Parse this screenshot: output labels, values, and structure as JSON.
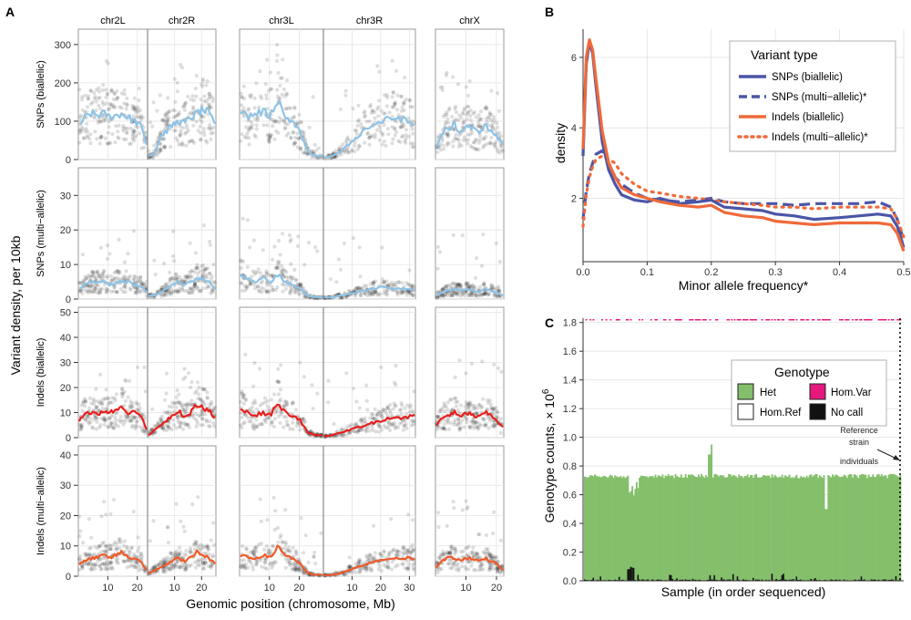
{
  "panel_a": {
    "letter": "A",
    "chromosomes": [
      "chr2L",
      "chr2R",
      "chr3L",
      "chr3R",
      "chrX"
    ],
    "ylabel": "Variant density, per 10kb",
    "xlabel": "Genomic position (chromosome, Mb)",
    "x_ticks": [
      {
        "chr": "chr2L",
        "values": [
          10,
          20
        ]
      },
      {
        "chr": "chr2R",
        "values": [
          10,
          20
        ]
      },
      {
        "chr": "chr3L",
        "values": [
          10,
          20
        ]
      },
      {
        "chr": "chr3R",
        "values": [
          10,
          20,
          30
        ]
      },
      {
        "chr": "chrX",
        "values": [
          10,
          20
        ]
      }
    ],
    "rows": [
      {
        "label": "SNPs (biallelic)",
        "ymax": 340,
        "ticks": [
          0,
          100,
          200,
          300
        ],
        "line_color": "#8ec3e6"
      },
      {
        "label": "SNPs (multi−allelic)",
        "ymax": 38,
        "ticks": [
          0,
          10,
          20,
          30
        ],
        "line_color": "#8ec3e6"
      },
      {
        "label": "Indels (biallelic)",
        "ymax": 52,
        "ticks": [
          0,
          10,
          20,
          30,
          40,
          50
        ],
        "line_color": "#e8201c"
      },
      {
        "label": "Indels (multi−allelic)",
        "ymax": 43,
        "ticks": [
          0,
          10,
          20,
          30,
          40
        ],
        "line_color": "#f05a28"
      }
    ]
  },
  "panel_b": {
    "letter": "B",
    "xlabel": "Minor allele frequency*",
    "ylabel": "density",
    "legend_title": "Variant type",
    "series_labels": [
      "SNPs (biallelic)",
      "SNPs (multi−allelic)*",
      "Indels (biallelic)",
      "Indels (multi−allelic)*"
    ]
  },
  "panel_c": {
    "letter": "C",
    "xlabel": "Sample (in order sequenced)",
    "ylabel_main": "Genotype counts, × 10",
    "ylabel_sup": "6",
    "legend_title": "Genotype",
    "legend_labels": [
      "Het",
      "Hom.Var",
      "Hom.Ref",
      "No call"
    ],
    "annotation": [
      "Reference",
      "strain",
      "individuals"
    ]
  },
  "chart_data": [
    {
      "type": "scatter",
      "panel": "A",
      "xlabel": "Genomic position (chromosome, Mb)",
      "ylabel": "Variant density, per 10kb",
      "chromosome_length_mb": {
        "chr2L": 23.5,
        "chr2R": 25.3,
        "chr3L": 28.1,
        "chr3R": 32.1,
        "chrX": 22.4
      },
      "series": [
        {
          "name": "SNPs (biallelic)",
          "ylim": [
            0,
            340
          ],
          "trend": {
            "chr2L": [
              90,
              110,
              120,
              115,
              120,
              110,
              115,
              120,
              110,
              100,
              90,
              40
            ],
            "chr2R": [
              10,
              15,
              60,
              75,
              90,
              100,
              95,
              110,
              120,
              130,
              120,
              90
            ],
            "chr3L": [
              130,
              110,
              120,
              125,
              115,
              160,
              110,
              100,
              70,
              20,
              10,
              8
            ],
            "chr3R": [
              5,
              10,
              20,
              40,
              60,
              80,
              90,
              100,
              105,
              110,
              100,
              90
            ],
            "chrX": [
              30,
              70,
              80,
              90,
              70,
              90,
              80,
              70,
              90,
              75,
              60,
              40
            ]
          }
        },
        {
          "name": "SNPs (multi−allelic)",
          "ylim": [
            0,
            38
          ],
          "trend": {
            "chr2L": [
              3,
              4,
              5,
              5,
              5,
              4,
              5,
              5,
              5,
              4,
              4,
              2
            ],
            "chr2R": [
              1,
              1,
              2,
              3,
              4,
              5,
              4,
              5,
              6,
              6,
              5,
              3
            ],
            "chr3L": [
              7,
              6,
              5,
              6,
              5,
              7,
              5,
              4,
              3,
              1,
              0.5,
              0.5
            ],
            "chr3R": [
              0.5,
              0.5,
              1,
              1.5,
              2,
              2.5,
              3,
              3.5,
              3,
              3,
              3,
              2.5
            ],
            "chrX": [
              1,
              2,
              2.5,
              3,
              2.5,
              3,
              2.5,
              2,
              3,
              2.5,
              2,
              1
            ]
          }
        },
        {
          "name": "Indels (biallelic)",
          "ylim": [
            0,
            52
          ],
          "trend": {
            "chr2L": [
              7,
              10,
              10,
              9,
              11,
              10,
              11,
              13,
              10,
              10,
              9,
              3
            ],
            "chr2R": [
              1,
              3,
              5,
              7,
              9,
              11,
              8,
              10,
              13,
              12,
              11,
              8
            ],
            "chr3L": [
              11,
              10,
              9,
              10,
              9,
              14,
              10,
              9,
              7,
              2,
              1,
              1
            ],
            "chr3R": [
              0.5,
              1,
              2,
              3,
              4,
              5,
              6,
              7,
              8,
              8,
              8,
              9
            ],
            "chrX": [
              5,
              8,
              9,
              10,
              8,
              10,
              9,
              8,
              10,
              9,
              7,
              4
            ]
          }
        },
        {
          "name": "Indels (multi−allelic)",
          "ylim": [
            0,
            43
          ],
          "trend": {
            "chr2L": [
              4,
              5,
              6,
              6,
              7,
              6,
              7,
              8,
              6,
              6,
              5,
              2
            ],
            "chr2R": [
              1,
              2,
              3,
              4,
              5,
              6,
              5,
              6,
              8,
              7,
              6,
              4
            ],
            "chr3L": [
              7,
              6,
              6,
              7,
              6,
              10,
              7,
              6,
              4,
              1,
              0.5,
              0.5
            ],
            "chr3R": [
              0.3,
              0.5,
              1,
              2,
              3,
              4,
              5,
              5,
              6,
              6,
              6,
              6
            ],
            "chrX": [
              3,
              5,
              6,
              6,
              5,
              6,
              6,
              5,
              6,
              5,
              4,
              2
            ]
          }
        }
      ]
    },
    {
      "type": "line",
      "panel": "B",
      "xlabel": "Minor allele frequency*",
      "ylabel": "density",
      "xlim": [
        0,
        0.5
      ],
      "ylim": [
        0.2,
        6.8
      ],
      "x_ticks": [
        0,
        0.1,
        0.2,
        0.3,
        0.4,
        0.5
      ],
      "y_ticks": [
        2,
        4,
        6
      ],
      "legend": "top-right",
      "series": [
        {
          "name": "SNPs (biallelic)",
          "color": "#4b55a6",
          "dash": "solid",
          "x": [
            0,
            0.005,
            0.01,
            0.015,
            0.02,
            0.03,
            0.04,
            0.05,
            0.06,
            0.08,
            0.1,
            0.12,
            0.15,
            0.18,
            0.2,
            0.22,
            0.25,
            0.28,
            0.3,
            0.33,
            0.36,
            0.4,
            0.43,
            0.46,
            0.48,
            0.49,
            0.5
          ],
          "y": [
            3.2,
            5.8,
            6.45,
            6.1,
            5.2,
            3.6,
            2.8,
            2.4,
            2.1,
            1.95,
            1.9,
            2.0,
            1.85,
            1.9,
            1.95,
            1.75,
            1.7,
            1.65,
            1.55,
            1.5,
            1.4,
            1.45,
            1.5,
            1.55,
            1.5,
            1.2,
            0.6
          ]
        },
        {
          "name": "SNPs (multi−allelic)*",
          "color": "#4b55a6",
          "dash": "long",
          "x": [
            0,
            0.005,
            0.01,
            0.015,
            0.02,
            0.03,
            0.04,
            0.05,
            0.06,
            0.08,
            0.1,
            0.12,
            0.15,
            0.18,
            0.2,
            0.22,
            0.25,
            0.28,
            0.3,
            0.33,
            0.36,
            0.4,
            0.43,
            0.46,
            0.48,
            0.49,
            0.5
          ],
          "y": [
            1.4,
            2.2,
            2.7,
            3.0,
            3.25,
            3.35,
            3.0,
            2.6,
            2.4,
            2.15,
            2.0,
            1.95,
            1.9,
            1.95,
            2.0,
            1.9,
            1.85,
            1.85,
            1.85,
            1.8,
            1.85,
            1.85,
            1.85,
            1.9,
            1.75,
            1.4,
            0.8
          ]
        },
        {
          "name": "Indels (biallelic)",
          "color": "#ef6a3a",
          "dash": "solid",
          "x": [
            0,
            0.005,
            0.01,
            0.015,
            0.02,
            0.03,
            0.04,
            0.05,
            0.06,
            0.08,
            0.1,
            0.12,
            0.15,
            0.18,
            0.2,
            0.22,
            0.25,
            0.28,
            0.3,
            0.33,
            0.36,
            0.4,
            0.43,
            0.46,
            0.48,
            0.49,
            0.5
          ],
          "y": [
            3.4,
            6.0,
            6.5,
            6.2,
            5.4,
            3.9,
            3.0,
            2.6,
            2.3,
            2.1,
            2.0,
            1.9,
            1.8,
            1.75,
            1.8,
            1.6,
            1.5,
            1.45,
            1.35,
            1.3,
            1.25,
            1.3,
            1.3,
            1.3,
            1.25,
            1.0,
            0.5
          ]
        },
        {
          "name": "Indels (multi−allelic)*",
          "color": "#ef6a3a",
          "dash": "dot",
          "x": [
            0,
            0.005,
            0.01,
            0.015,
            0.02,
            0.03,
            0.04,
            0.05,
            0.06,
            0.08,
            0.1,
            0.12,
            0.15,
            0.18,
            0.2,
            0.22,
            0.25,
            0.28,
            0.3,
            0.33,
            0.36,
            0.4,
            0.43,
            0.46,
            0.48,
            0.49,
            0.5
          ],
          "y": [
            1.2,
            2.1,
            2.6,
            2.9,
            3.1,
            3.2,
            3.1,
            3.0,
            2.7,
            2.4,
            2.2,
            2.15,
            2.05,
            2.0,
            1.95,
            1.9,
            1.85,
            1.8,
            1.75,
            1.75,
            1.7,
            1.75,
            1.75,
            1.75,
            1.7,
            1.4,
            0.9
          ]
        }
      ]
    },
    {
      "type": "bar",
      "panel": "C",
      "xlabel": "Sample (in order sequenced)",
      "ylabel": "Genotype counts, × 10^6",
      "ylim": [
        0,
        1.83
      ],
      "y_ticks": [
        0,
        0.2,
        0.4,
        0.6,
        0.8,
        1.0,
        1.2,
        1.4,
        1.6,
        1.8
      ],
      "legend": "top-right",
      "series": [
        {
          "name": "Het",
          "color": "#84bf6b",
          "typical_value": 0.73,
          "notable_values": [
            {
              "sample_fraction": 0.4,
              "value": 0.95
            },
            {
              "sample_fraction": 0.395,
              "value": 0.88
            },
            {
              "sample_fraction": 0.155,
              "value": 0.5
            },
            {
              "sample_fraction": 0.765,
              "value": 0.5
            }
          ]
        },
        {
          "name": "Hom.Var",
          "color": "#e5187d",
          "typical_value": 0.005
        },
        {
          "name": "Hom.Ref",
          "color": "#ffffff",
          "typical_value": 1.05
        },
        {
          "name": "No call",
          "color": "#111111",
          "typical_value": 0.01,
          "notable_values": [
            {
              "sample_fraction": 0.145,
              "value": 0.11
            }
          ]
        }
      ]
    }
  ]
}
